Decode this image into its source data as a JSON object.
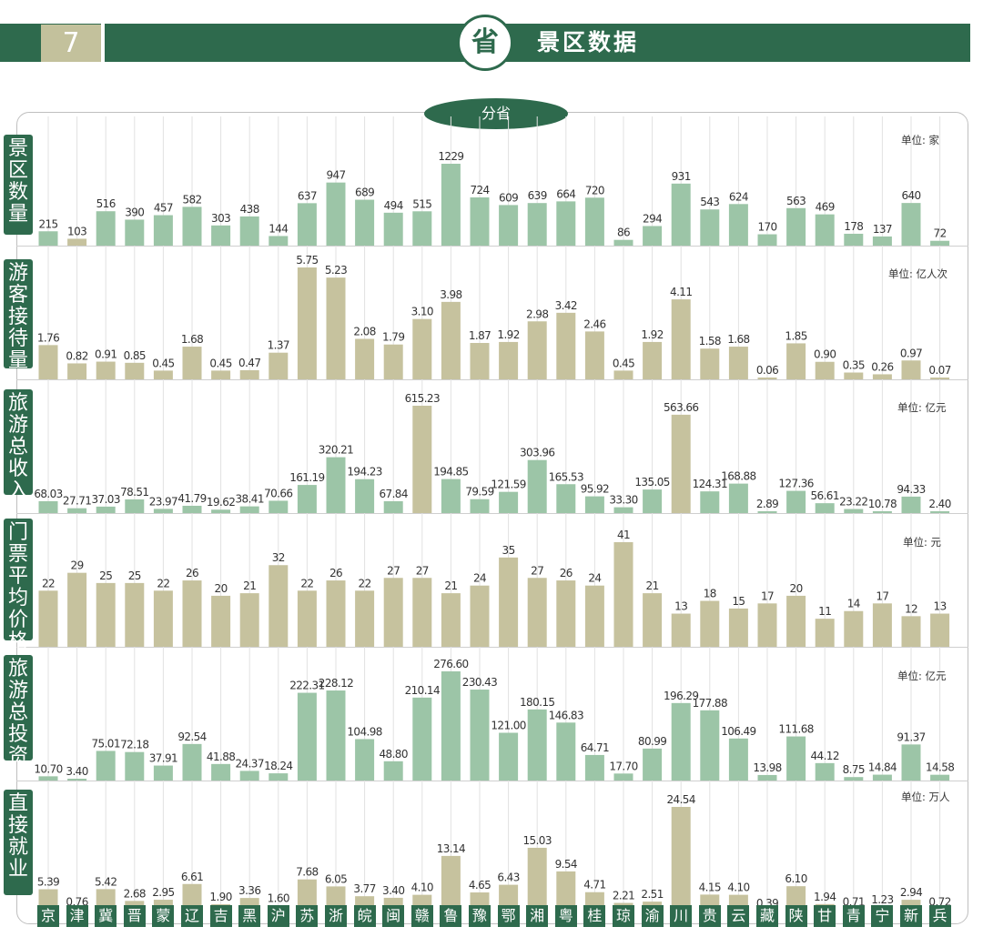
{
  "header": {
    "number": "7",
    "icon_char": "省",
    "title": "景区数据"
  },
  "subtitle": "分省",
  "colors": {
    "green": "#2e6a4d",
    "bar_green": "#9cc5a7",
    "bar_tan": "#c6c29e",
    "number_box": "#c3c19c"
  },
  "chart_data": [
    {
      "type": "bar",
      "label": "景区数量",
      "unit": "单位: 家",
      "categories": [
        "京",
        "津",
        "冀",
        "晋",
        "蒙",
        "辽",
        "吉",
        "黑",
        "沪",
        "苏",
        "浙",
        "皖",
        "闽",
        "赣",
        "鲁",
        "豫",
        "鄂",
        "湘",
        "粤",
        "桂",
        "琼",
        "渝",
        "川",
        "贵",
        "云",
        "藏",
        "陕",
        "甘",
        "青",
        "宁",
        "新",
        "兵"
      ],
      "colors": [
        "green",
        "tan",
        "green",
        "green",
        "green",
        "green",
        "green",
        "green",
        "green",
        "green",
        "green",
        "green",
        "green",
        "green",
        "green",
        "green",
        "green",
        "green",
        "green",
        "green",
        "green",
        "green",
        "green",
        "green",
        "green",
        "green",
        "green",
        "green",
        "green",
        "green",
        "green",
        "green"
      ],
      "values": [
        215,
        103,
        516,
        390,
        457,
        582,
        303,
        438,
        144,
        637,
        947,
        689,
        494,
        515,
        1229,
        724,
        609,
        639,
        664,
        720,
        86,
        294,
        931,
        543,
        624,
        170,
        563,
        469,
        178,
        137,
        640,
        72
      ],
      "labels": [
        "215",
        "103",
        "516",
        "390",
        "457",
        "582",
        "303",
        "438",
        "144",
        "637",
        "947",
        "689",
        "494",
        "515",
        "1229",
        "724",
        "609",
        "639",
        "664",
        "720",
        "86",
        "294",
        "931",
        "543",
        "624",
        "170",
        "563",
        "469",
        "178",
        "137",
        "640",
        "72"
      ],
      "ylim": [
        0,
        1229
      ]
    },
    {
      "type": "bar",
      "label": "游客接待量",
      "unit": "单位: 亿人次",
      "categories": [
        "京",
        "津",
        "冀",
        "晋",
        "蒙",
        "辽",
        "吉",
        "黑",
        "沪",
        "苏",
        "浙",
        "皖",
        "闽",
        "赣",
        "鲁",
        "豫",
        "鄂",
        "湘",
        "粤",
        "桂",
        "琼",
        "渝",
        "川",
        "贵",
        "云",
        "藏",
        "陕",
        "甘",
        "青",
        "宁",
        "新",
        "兵"
      ],
      "colors": [
        "tan",
        "tan",
        "tan",
        "tan",
        "tan",
        "tan",
        "tan",
        "tan",
        "tan",
        "tan",
        "tan",
        "tan",
        "tan",
        "tan",
        "tan",
        "tan",
        "tan",
        "tan",
        "tan",
        "tan",
        "tan",
        "tan",
        "tan",
        "tan",
        "tan",
        "tan",
        "tan",
        "tan",
        "tan",
        "tan",
        "tan",
        "tan"
      ],
      "values": [
        1.76,
        0.82,
        0.91,
        0.85,
        0.45,
        1.68,
        0.45,
        0.47,
        1.37,
        5.75,
        5.23,
        2.08,
        1.79,
        3.1,
        3.98,
        1.87,
        1.92,
        2.98,
        3.42,
        2.46,
        0.45,
        1.92,
        4.11,
        1.58,
        1.68,
        0.06,
        1.85,
        0.9,
        0.35,
        0.26,
        0.97,
        0.07
      ],
      "labels": [
        "1.76",
        "0.82",
        "0.91",
        "0.85",
        "0.45",
        "1.68",
        "0.45",
        "0.47",
        "1.37",
        "5.75",
        "5.23",
        "2.08",
        "1.79",
        "3.10",
        "3.98",
        "1.87",
        "1.92",
        "2.98",
        "3.42",
        "2.46",
        "0.45",
        "1.92",
        "4.11",
        "1.58",
        "1.68",
        "0.06",
        "1.85",
        "0.90",
        "0.35",
        "0.26",
        "0.97",
        "0.07"
      ],
      "ylim": [
        0,
        5.75
      ]
    },
    {
      "type": "bar",
      "label": "旅游总收入",
      "unit": "单位: 亿元",
      "categories": [
        "京",
        "津",
        "冀",
        "晋",
        "蒙",
        "辽",
        "吉",
        "黑",
        "沪",
        "苏",
        "浙",
        "皖",
        "闽",
        "赣",
        "鲁",
        "豫",
        "鄂",
        "湘",
        "粤",
        "桂",
        "琼",
        "渝",
        "川",
        "贵",
        "云",
        "藏",
        "陕",
        "甘",
        "青",
        "宁",
        "新",
        "兵"
      ],
      "colors": [
        "green",
        "green",
        "green",
        "green",
        "green",
        "green",
        "green",
        "green",
        "green",
        "green",
        "green",
        "green",
        "green",
        "tan",
        "green",
        "green",
        "green",
        "green",
        "green",
        "green",
        "green",
        "green",
        "tan",
        "green",
        "green",
        "green",
        "green",
        "green",
        "green",
        "green",
        "green",
        "green"
      ],
      "values": [
        68.03,
        27.71,
        37.03,
        78.51,
        23.97,
        41.79,
        19.62,
        38.41,
        70.66,
        161.19,
        320.21,
        194.23,
        67.84,
        615.23,
        194.85,
        79.59,
        121.59,
        303.96,
        165.53,
        95.92,
        33.3,
        135.05,
        563.66,
        124.31,
        168.88,
        2.89,
        127.36,
        56.61,
        23.22,
        10.78,
        94.33,
        2.4
      ],
      "labels": [
        "68.03",
        "27.71",
        "37.03",
        "78.51",
        "23.97",
        "41.79",
        "19.62",
        "38.41",
        "70.66",
        "161.19",
        "320.21",
        "194.23",
        "67.84",
        "615.23",
        "194.85",
        "79.59",
        "121.59",
        "303.96",
        "165.53",
        "95.92",
        "33.30",
        "135.05",
        "563.66",
        "124.31",
        "168.88",
        "2.89",
        "127.36",
        "56.61",
        "23.22",
        "10.78",
        "94.33",
        "2.40"
      ],
      "ylim": [
        0,
        615.23
      ]
    },
    {
      "type": "bar",
      "label": "门票平均价格",
      "unit": "单位: 元",
      "categories": [
        "京",
        "津",
        "冀",
        "晋",
        "蒙",
        "辽",
        "吉",
        "黑",
        "沪",
        "苏",
        "浙",
        "皖",
        "闽",
        "赣",
        "鲁",
        "豫",
        "鄂",
        "湘",
        "粤",
        "桂",
        "琼",
        "渝",
        "川",
        "贵",
        "云",
        "藏",
        "陕",
        "甘",
        "青",
        "宁",
        "新",
        "兵"
      ],
      "colors": [
        "tan",
        "tan",
        "tan",
        "tan",
        "tan",
        "tan",
        "tan",
        "tan",
        "tan",
        "tan",
        "tan",
        "tan",
        "tan",
        "tan",
        "tan",
        "tan",
        "tan",
        "tan",
        "tan",
        "tan",
        "tan",
        "tan",
        "tan",
        "tan",
        "tan",
        "tan",
        "tan",
        "tan",
        "tan",
        "tan",
        "tan",
        "tan"
      ],
      "values": [
        22,
        29,
        25,
        25,
        22,
        26,
        20,
        21,
        32,
        22,
        26,
        22,
        27,
        27,
        21,
        24,
        35,
        27,
        26,
        24,
        41,
        21,
        13,
        18,
        15,
        17,
        20,
        11,
        14,
        17,
        12,
        13
      ],
      "labels": [
        "22",
        "29",
        "25",
        "25",
        "22",
        "26",
        "20",
        "21",
        "32",
        "22",
        "26",
        "22",
        "27",
        "27",
        "21",
        "24",
        "35",
        "27",
        "26",
        "24",
        "41",
        "21",
        "13",
        "18",
        "15",
        "17",
        "20",
        "11",
        "14",
        "17",
        "12",
        "13"
      ],
      "ylim": [
        0,
        41
      ]
    },
    {
      "type": "bar",
      "label": "旅游总投资",
      "unit": "单位: 亿元",
      "categories": [
        "京",
        "津",
        "冀",
        "晋",
        "蒙",
        "辽",
        "吉",
        "黑",
        "沪",
        "苏",
        "浙",
        "皖",
        "闽",
        "赣",
        "鲁",
        "豫",
        "鄂",
        "湘",
        "粤",
        "桂",
        "琼",
        "渝",
        "川",
        "贵",
        "云",
        "藏",
        "陕",
        "甘",
        "青",
        "宁",
        "新",
        "兵"
      ],
      "colors": [
        "green",
        "green",
        "green",
        "green",
        "green",
        "green",
        "green",
        "green",
        "green",
        "green",
        "green",
        "green",
        "green",
        "green",
        "green",
        "green",
        "green",
        "green",
        "green",
        "green",
        "green",
        "green",
        "green",
        "green",
        "green",
        "green",
        "green",
        "green",
        "green",
        "green",
        "green",
        "green"
      ],
      "values": [
        10.7,
        3.4,
        75.01,
        72.18,
        37.91,
        92.54,
        41.88,
        24.37,
        18.24,
        222.31,
        228.12,
        104.98,
        48.8,
        210.14,
        276.6,
        230.43,
        121.0,
        180.15,
        146.83,
        64.71,
        17.7,
        80.99,
        196.29,
        177.88,
        106.49,
        13.98,
        111.68,
        44.12,
        8.75,
        14.84,
        91.37,
        14.58
      ],
      "labels": [
        "10.70",
        "3.40",
        "75.01",
        "72.18",
        "37.91",
        "92.54",
        "41.88",
        "24.37",
        "18.24",
        "222.31",
        "228.12",
        "104.98",
        "48.80",
        "210.14",
        "276.60",
        "230.43",
        "121.00",
        "180.15",
        "146.83",
        "64.71",
        "17.70",
        "80.99",
        "196.29",
        "177.88",
        "106.49",
        "13.98",
        "111.68",
        "44.12",
        "8.75",
        "14.84",
        "91.37",
        "14.58"
      ],
      "ylim": [
        0,
        276.6
      ]
    },
    {
      "type": "bar",
      "label": "直接就业",
      "unit": "单位: 万人",
      "categories": [
        "京",
        "津",
        "冀",
        "晋",
        "蒙",
        "辽",
        "吉",
        "黑",
        "沪",
        "苏",
        "浙",
        "皖",
        "闽",
        "赣",
        "鲁",
        "豫",
        "鄂",
        "湘",
        "粤",
        "桂",
        "琼",
        "渝",
        "川",
        "贵",
        "云",
        "藏",
        "陕",
        "甘",
        "青",
        "宁",
        "新",
        "兵"
      ],
      "colors": [
        "tan",
        "tan",
        "tan",
        "tan",
        "tan",
        "tan",
        "tan",
        "tan",
        "tan",
        "tan",
        "tan",
        "tan",
        "tan",
        "tan",
        "tan",
        "tan",
        "tan",
        "tan",
        "tan",
        "tan",
        "tan",
        "tan",
        "tan",
        "tan",
        "tan",
        "tan",
        "tan",
        "tan",
        "tan",
        "tan",
        "tan",
        "tan"
      ],
      "values": [
        5.39,
        0.76,
        5.42,
        2.68,
        2.95,
        6.61,
        1.9,
        3.36,
        1.6,
        7.68,
        6.05,
        3.77,
        3.4,
        4.1,
        13.14,
        4.65,
        6.43,
        15.03,
        9.54,
        4.71,
        2.21,
        2.51,
        24.54,
        4.15,
        4.1,
        0.39,
        6.1,
        1.94,
        0.71,
        1.23,
        2.94,
        0.72
      ],
      "labels": [
        "5.39",
        "0.76",
        "5.42",
        "2.68",
        "2.95",
        "6.61",
        "1.90",
        "3.36",
        "1.60",
        "7.68",
        "6.05",
        "3.77",
        "3.40",
        "4.10",
        "13.14",
        "4.65",
        "6.43",
        "15.03",
        "9.54",
        "4.71",
        "2.21",
        "2.51",
        "24.54",
        "4.15",
        "4.10",
        "0.39",
        "6.10",
        "1.94",
        "0.71",
        "1.23",
        "2.94",
        "0.72"
      ],
      "ylim": [
        0,
        24.54
      ]
    }
  ],
  "provinces": [
    "京",
    "津",
    "冀",
    "晋",
    "蒙",
    "辽",
    "吉",
    "黑",
    "沪",
    "苏",
    "浙",
    "皖",
    "闽",
    "赣",
    "鲁",
    "豫",
    "鄂",
    "湘",
    "粤",
    "桂",
    "琼",
    "渝",
    "川",
    "贵",
    "云",
    "藏",
    "陕",
    "甘",
    "青",
    "宁",
    "新",
    "兵"
  ]
}
